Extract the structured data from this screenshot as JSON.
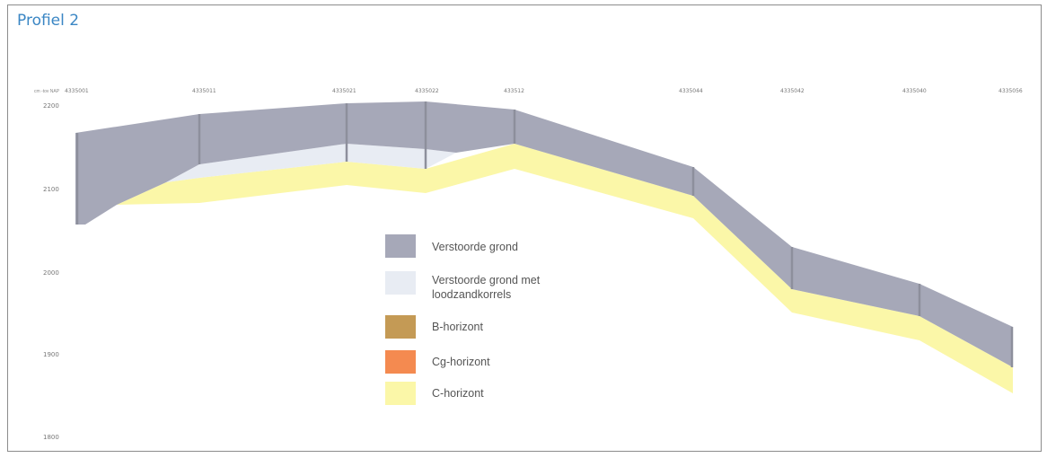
{
  "title": "Profiel 2",
  "y_unit_label": "cm -tov NAP",
  "y_axis": {
    "ticks": [
      "2200",
      "2100",
      "2000",
      "1900",
      "1800"
    ],
    "min": 1800,
    "max": 2200
  },
  "boreholes": [
    "4335001",
    "4335011",
    "4335021",
    "4335022",
    "433512",
    "4335044",
    "4335042",
    "4335040",
    "4335056"
  ],
  "colors": {
    "verstoorde": "#a6a8b8",
    "loodzand": "#e8ecf3",
    "b_horizont": "#c49a55",
    "cg_horizont": "#f48a50",
    "c_horizont": "#fbf7a8"
  },
  "legend": [
    {
      "label": "Verstoorde grond",
      "color_key": "verstoorde"
    },
    {
      "label": "Verstoorde grond met loodzandkorrels",
      "color_key": "loodzand"
    },
    {
      "label": "B-horizont",
      "color_key": "b_horizont"
    },
    {
      "label": "Cg-horizont",
      "color_key": "cg_horizont"
    },
    {
      "label": "C-horizont",
      "color_key": "c_horizont"
    }
  ]
}
